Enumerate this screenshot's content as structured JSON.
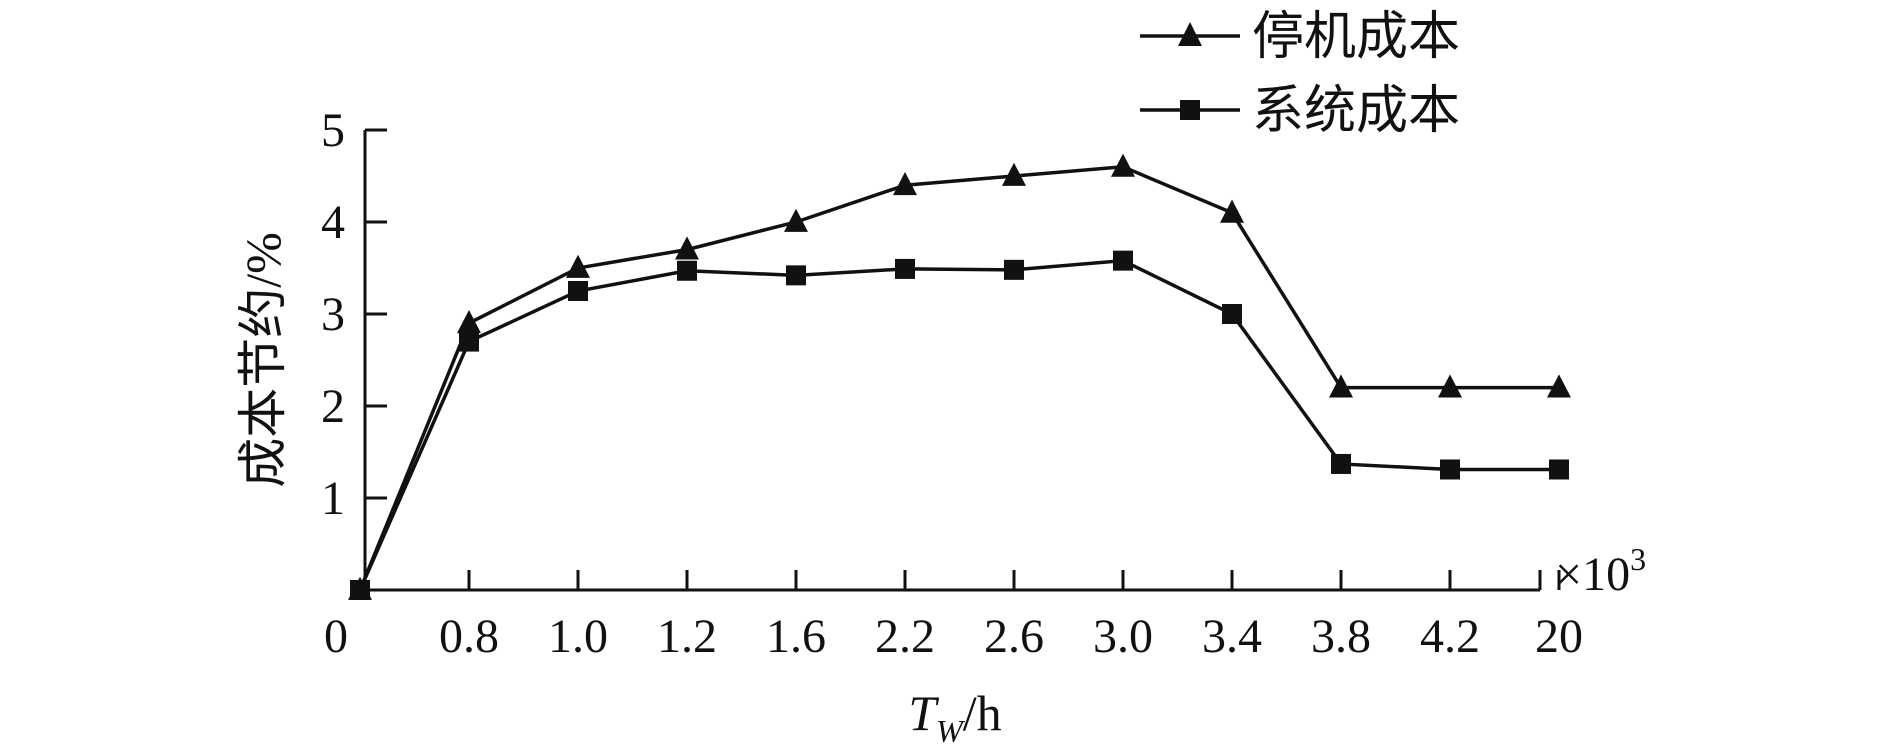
{
  "chart_data": {
    "type": "line",
    "categories": [
      "0",
      "0.8",
      "1.0",
      "1.2",
      "1.6",
      "2.2",
      "2.6",
      "3.0",
      "3.4",
      "3.8",
      "4.2",
      "20"
    ],
    "x_multiplier": "×10",
    "x_multiplier_exp": "3",
    "xlabel_main": "T",
    "xlabel_sub": "W",
    "xlabel_unit": "/h",
    "ylabel": "成本节约/%",
    "ylim": [
      0,
      5
    ],
    "yticks": [
      "1",
      "2",
      "3",
      "4",
      "5"
    ],
    "legend_position": "top-right",
    "series": [
      {
        "name": "停机成本",
        "marker": "triangle",
        "values": [
          0,
          2.9,
          3.5,
          3.7,
          4.0,
          4.4,
          4.5,
          4.6,
          4.1,
          2.2,
          2.2,
          2.2
        ]
      },
      {
        "name": "系统成本",
        "marker": "square",
        "values": [
          0,
          2.7,
          3.25,
          3.47,
          3.42,
          3.49,
          3.48,
          3.58,
          3.0,
          1.37,
          1.31,
          1.31
        ]
      }
    ]
  }
}
